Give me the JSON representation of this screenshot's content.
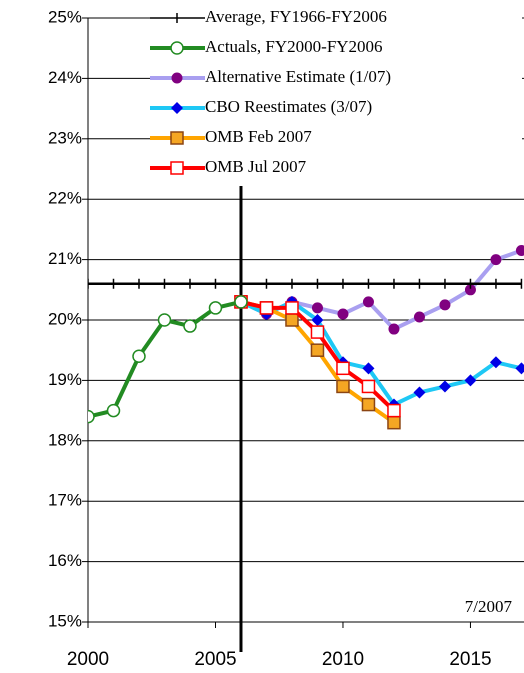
{
  "chart_data": {
    "type": "line",
    "x": [
      2000,
      2001,
      2002,
      2003,
      2004,
      2005,
      2006,
      2007,
      2008,
      2009,
      2010,
      2011,
      2012,
      2013,
      2014,
      2015,
      2016,
      2017
    ],
    "xlim": [
      2000,
      2017.1
    ],
    "xticks": [
      2000,
      2005,
      2010,
      2015
    ],
    "ylim": [
      15,
      25
    ],
    "yticks": [
      {
        "value": 15,
        "label": "15%"
      },
      {
        "value": 16,
        "label": "16%"
      },
      {
        "value": 17,
        "label": "17%"
      },
      {
        "value": 18,
        "label": "18%"
      },
      {
        "value": 19,
        "label": "19%"
      },
      {
        "value": 20,
        "label": "20%"
      },
      {
        "value": 21,
        "label": "21%"
      },
      {
        "value": 22,
        "label": "22%"
      },
      {
        "value": 23,
        "label": "23%"
      },
      {
        "value": 24,
        "label": "24%"
      },
      {
        "value": 25,
        "label": "25%"
      }
    ],
    "grid": true,
    "vline_x": 2006,
    "annotation": "7/2007",
    "series": [
      {
        "name": "Average, FY1966-FY2006",
        "color": "#000000",
        "marker": "dash",
        "values": [
          20.6,
          20.6,
          20.6,
          20.6,
          20.6,
          20.6,
          20.6,
          20.6,
          20.6,
          20.6,
          20.6,
          20.6,
          20.6,
          20.6,
          20.6,
          20.6,
          20.6,
          20.6
        ]
      },
      {
        "name": "Actuals, FY2000-FY2006",
        "color": "#228b22",
        "marker": "open-circle",
        "values": [
          18.4,
          18.5,
          19.4,
          20.0,
          19.9,
          20.2,
          20.3,
          null,
          null,
          null,
          null,
          null,
          null,
          null,
          null,
          null,
          null,
          null
        ]
      },
      {
        "name": "Alternative Estimate (1/07)",
        "color": "#a99ff0",
        "marker_color": "#800080",
        "marker": "circle",
        "values": [
          null,
          null,
          null,
          null,
          null,
          null,
          20.3,
          20.1,
          20.3,
          20.2,
          20.1,
          20.3,
          19.85,
          20.05,
          20.25,
          20.5,
          21.0,
          21.15
        ]
      },
      {
        "name": "CBO Reestimates (3/07)",
        "color": "#1ec8f5",
        "marker_color": "#0000e6",
        "marker": "diamond",
        "values": [
          null,
          null,
          null,
          null,
          null,
          null,
          20.3,
          20.1,
          20.3,
          20.0,
          19.3,
          19.2,
          18.6,
          18.8,
          18.9,
          19.0,
          19.3,
          19.2
        ]
      },
      {
        "name": "OMB Feb 2007",
        "color": "#ffa500",
        "marker_color": "#f5a623",
        "marker": "square",
        "values": [
          null,
          null,
          null,
          null,
          null,
          null,
          20.3,
          20.2,
          20.0,
          19.5,
          18.9,
          18.6,
          18.3,
          null,
          null,
          null,
          null,
          null
        ]
      },
      {
        "name": "OMB Jul 2007",
        "color": "#ff0000",
        "marker_color": "#ffffff",
        "marker": "square",
        "values": [
          null,
          null,
          null,
          null,
          null,
          null,
          20.3,
          20.2,
          20.2,
          19.8,
          19.2,
          18.9,
          18.5,
          null,
          null,
          null,
          null,
          null
        ]
      }
    ]
  }
}
